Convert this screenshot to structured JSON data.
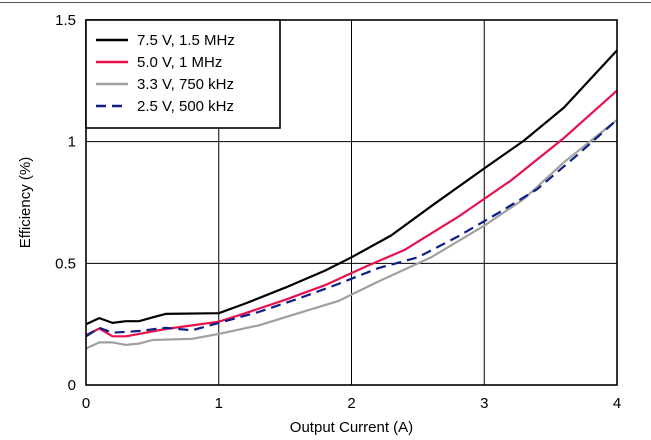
{
  "chart_data": {
    "type": "line",
    "title": "",
    "xlabel": "Output Current (A)",
    "ylabel": "Efficiency (%)",
    "xlim": [
      0,
      4
    ],
    "ylim": [
      0,
      1.5
    ],
    "x_ticks": [
      "0",
      "1",
      "2",
      "3",
      "4"
    ],
    "y_ticks": [
      "0",
      "0.5",
      "1",
      "1.5"
    ],
    "grid": true,
    "legend_position": "top-left",
    "series": [
      {
        "name": "7.5 V, 1.5 MHz",
        "color": "#000000",
        "dash": "solid",
        "points": [
          [
            0,
            0.25
          ],
          [
            0.1,
            0.275
          ],
          [
            0.2,
            0.255
          ],
          [
            0.3,
            0.262
          ],
          [
            0.4,
            0.262
          ],
          [
            0.5,
            0.278
          ],
          [
            0.6,
            0.292
          ],
          [
            1.0,
            0.295
          ],
          [
            1.2,
            0.335
          ],
          [
            1.5,
            0.4
          ],
          [
            1.8,
            0.47
          ],
          [
            2.0,
            0.525
          ],
          [
            2.3,
            0.615
          ],
          [
            2.6,
            0.735
          ],
          [
            3.0,
            0.89
          ],
          [
            3.3,
            1.005
          ],
          [
            3.6,
            1.14
          ],
          [
            4.0,
            1.375
          ]
        ]
      },
      {
        "name": "5.0 V, 1 MHz",
        "color": "#e8114e",
        "dash": "solid",
        "points": [
          [
            0,
            0.205
          ],
          [
            0.1,
            0.232
          ],
          [
            0.2,
            0.2
          ],
          [
            0.3,
            0.2
          ],
          [
            0.4,
            0.21
          ],
          [
            0.6,
            0.23
          ],
          [
            0.8,
            0.245
          ],
          [
            1.0,
            0.26
          ],
          [
            1.2,
            0.295
          ],
          [
            1.5,
            0.35
          ],
          [
            1.8,
            0.41
          ],
          [
            2.1,
            0.485
          ],
          [
            2.4,
            0.555
          ],
          [
            2.8,
            0.69
          ],
          [
            3.2,
            0.84
          ],
          [
            3.6,
            1.015
          ],
          [
            4.0,
            1.21
          ]
        ]
      },
      {
        "name": "3.3 V, 750 kHz",
        "color": "#a0a0a0",
        "dash": "solid",
        "points": [
          [
            0,
            0.15
          ],
          [
            0.1,
            0.175
          ],
          [
            0.2,
            0.175
          ],
          [
            0.3,
            0.165
          ],
          [
            0.4,
            0.17
          ],
          [
            0.5,
            0.185
          ],
          [
            0.8,
            0.19
          ],
          [
            1.0,
            0.21
          ],
          [
            1.3,
            0.245
          ],
          [
            1.6,
            0.295
          ],
          [
            1.9,
            0.345
          ],
          [
            2.2,
            0.425
          ],
          [
            2.6,
            0.525
          ],
          [
            3.0,
            0.655
          ],
          [
            3.3,
            0.765
          ],
          [
            3.6,
            0.915
          ],
          [
            4.0,
            1.09
          ]
        ]
      },
      {
        "name": "2.5 V, 500 kHz",
        "color": "#0c1f86",
        "dash": "dashed",
        "points": [
          [
            0,
            0.2
          ],
          [
            0.1,
            0.235
          ],
          [
            0.2,
            0.215
          ],
          [
            0.4,
            0.222
          ],
          [
            0.6,
            0.235
          ],
          [
            0.8,
            0.225
          ],
          [
            1.0,
            0.255
          ],
          [
            1.3,
            0.3
          ],
          [
            1.6,
            0.355
          ],
          [
            1.9,
            0.415
          ],
          [
            2.2,
            0.48
          ],
          [
            2.5,
            0.525
          ],
          [
            2.8,
            0.61
          ],
          [
            3.1,
            0.705
          ],
          [
            3.4,
            0.805
          ],
          [
            3.7,
            0.945
          ],
          [
            4.0,
            1.09
          ]
        ]
      }
    ]
  }
}
